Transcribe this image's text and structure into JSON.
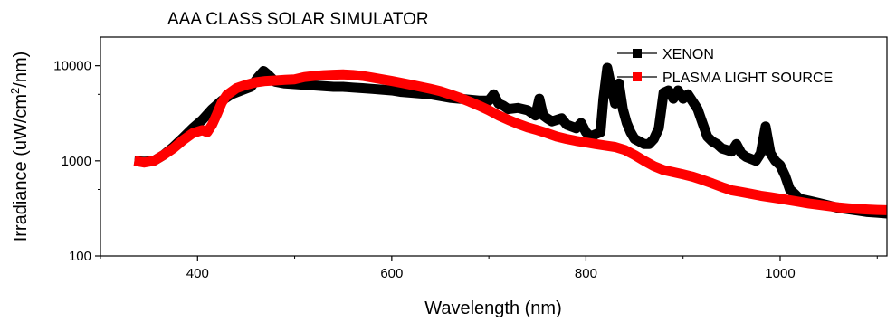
{
  "chart_data": {
    "type": "line",
    "title": "AAA CLASS SOLAR SIMULATOR",
    "xlabel": "Wavelength (nm)",
    "ylabel_parts": [
      "Irradiance (uW/cm",
      "2",
      "/nm)"
    ],
    "xlim": [
      300,
      1110
    ],
    "ylim": [
      100,
      20000
    ],
    "yscale": "log",
    "x_ticks": [
      400,
      600,
      800,
      1000
    ],
    "x_tick_labels": [
      "400",
      "600",
      "800",
      "1000"
    ],
    "y_ticks": [
      100,
      1000,
      10000
    ],
    "y_tick_labels": [
      "100",
      "1000",
      "10000"
    ],
    "grid": false,
    "legend_position": "top-right",
    "series": [
      {
        "name": "XENON",
        "color": "#000000",
        "points": [
          [
            335,
            1000
          ],
          [
            345,
            980
          ],
          [
            355,
            1000
          ],
          [
            365,
            1150
          ],
          [
            375,
            1400
          ],
          [
            385,
            1750
          ],
          [
            395,
            2200
          ],
          [
            405,
            2700
          ],
          [
            415,
            3500
          ],
          [
            425,
            4300
          ],
          [
            435,
            5000
          ],
          [
            445,
            5500
          ],
          [
            455,
            6000
          ],
          [
            462,
            7500
          ],
          [
            468,
            8800
          ],
          [
            474,
            7800
          ],
          [
            480,
            6800
          ],
          [
            490,
            6500
          ],
          [
            500,
            6400
          ],
          [
            510,
            6300
          ],
          [
            520,
            6200
          ],
          [
            530,
            6100
          ],
          [
            540,
            6000
          ],
          [
            550,
            6000
          ],
          [
            560,
            5900
          ],
          [
            570,
            5800
          ],
          [
            580,
            5700
          ],
          [
            590,
            5600
          ],
          [
            600,
            5500
          ],
          [
            610,
            5300
          ],
          [
            620,
            5200
          ],
          [
            630,
            5100
          ],
          [
            640,
            5000
          ],
          [
            650,
            4800
          ],
          [
            660,
            4600
          ],
          [
            670,
            4500
          ],
          [
            680,
            4400
          ],
          [
            690,
            4300
          ],
          [
            700,
            4300
          ],
          [
            705,
            5000
          ],
          [
            710,
            4000
          ],
          [
            715,
            3800
          ],
          [
            720,
            3500
          ],
          [
            730,
            3600
          ],
          [
            740,
            3400
          ],
          [
            748,
            3000
          ],
          [
            752,
            4500
          ],
          [
            756,
            3000
          ],
          [
            760,
            2800
          ],
          [
            765,
            2600
          ],
          [
            770,
            2700
          ],
          [
            775,
            2800
          ],
          [
            780,
            2400
          ],
          [
            785,
            2300
          ],
          [
            790,
            2200
          ],
          [
            795,
            2500
          ],
          [
            800,
            2000
          ],
          [
            805,
            1800
          ],
          [
            810,
            1900
          ],
          [
            815,
            2000
          ],
          [
            818,
            4500
          ],
          [
            822,
            9500
          ],
          [
            826,
            6000
          ],
          [
            830,
            4000
          ],
          [
            834,
            6500
          ],
          [
            838,
            3500
          ],
          [
            842,
            2500
          ],
          [
            846,
            2000
          ],
          [
            850,
            1700
          ],
          [
            855,
            1600
          ],
          [
            860,
            1500
          ],
          [
            865,
            1500
          ],
          [
            870,
            1700
          ],
          [
            875,
            2200
          ],
          [
            880,
            5200
          ],
          [
            885,
            5500
          ],
          [
            890,
            4500
          ],
          [
            895,
            5500
          ],
          [
            900,
            4500
          ],
          [
            905,
            5000
          ],
          [
            910,
            4200
          ],
          [
            915,
            3500
          ],
          [
            920,
            2500
          ],
          [
            925,
            1800
          ],
          [
            930,
            1600
          ],
          [
            935,
            1500
          ],
          [
            940,
            1350
          ],
          [
            945,
            1300
          ],
          [
            950,
            1250
          ],
          [
            955,
            1500
          ],
          [
            960,
            1200
          ],
          [
            965,
            1100
          ],
          [
            970,
            1050
          ],
          [
            975,
            1000
          ],
          [
            980,
            1200
          ],
          [
            985,
            2300
          ],
          [
            990,
            1200
          ],
          [
            995,
            1000
          ],
          [
            1000,
            900
          ],
          [
            1005,
            700
          ],
          [
            1010,
            500
          ],
          [
            1015,
            450
          ],
          [
            1020,
            400
          ],
          [
            1030,
            380
          ],
          [
            1040,
            360
          ],
          [
            1050,
            340
          ],
          [
            1060,
            320
          ],
          [
            1070,
            310
          ],
          [
            1080,
            300
          ],
          [
            1090,
            290
          ],
          [
            1100,
            285
          ],
          [
            1110,
            280
          ]
        ]
      },
      {
        "name": "PLASMA LIGHT SOURCE",
        "color": "#ff0000",
        "points": [
          [
            335,
            1000
          ],
          [
            345,
            960
          ],
          [
            355,
            1000
          ],
          [
            365,
            1150
          ],
          [
            375,
            1350
          ],
          [
            385,
            1650
          ],
          [
            395,
            1950
          ],
          [
            405,
            2100
          ],
          [
            410,
            2000
          ],
          [
            415,
            2400
          ],
          [
            420,
            3100
          ],
          [
            425,
            4100
          ],
          [
            430,
            4900
          ],
          [
            440,
            5800
          ],
          [
            450,
            6300
          ],
          [
            460,
            6700
          ],
          [
            470,
            6900
          ],
          [
            480,
            7000
          ],
          [
            490,
            7100
          ],
          [
            500,
            7200
          ],
          [
            510,
            7600
          ],
          [
            520,
            7800
          ],
          [
            530,
            7950
          ],
          [
            540,
            8050
          ],
          [
            550,
            8100
          ],
          [
            560,
            8000
          ],
          [
            570,
            7800
          ],
          [
            580,
            7500
          ],
          [
            590,
            7200
          ],
          [
            600,
            6900
          ],
          [
            610,
            6600
          ],
          [
            620,
            6300
          ],
          [
            630,
            6000
          ],
          [
            640,
            5700
          ],
          [
            650,
            5400
          ],
          [
            660,
            5000
          ],
          [
            670,
            4600
          ],
          [
            680,
            4200
          ],
          [
            690,
            3800
          ],
          [
            700,
            3400
          ],
          [
            710,
            3000
          ],
          [
            720,
            2700
          ],
          [
            730,
            2450
          ],
          [
            740,
            2250
          ],
          [
            750,
            2100
          ],
          [
            760,
            1950
          ],
          [
            770,
            1800
          ],
          [
            780,
            1700
          ],
          [
            790,
            1620
          ],
          [
            800,
            1560
          ],
          [
            810,
            1500
          ],
          [
            820,
            1450
          ],
          [
            830,
            1400
          ],
          [
            840,
            1300
          ],
          [
            850,
            1150
          ],
          [
            860,
            1000
          ],
          [
            870,
            880
          ],
          [
            880,
            800
          ],
          [
            890,
            760
          ],
          [
            900,
            720
          ],
          [
            910,
            680
          ],
          [
            920,
            630
          ],
          [
            930,
            580
          ],
          [
            940,
            530
          ],
          [
            950,
            490
          ],
          [
            960,
            470
          ],
          [
            970,
            450
          ],
          [
            980,
            430
          ],
          [
            990,
            415
          ],
          [
            1000,
            400
          ],
          [
            1010,
            385
          ],
          [
            1020,
            370
          ],
          [
            1030,
            355
          ],
          [
            1040,
            345
          ],
          [
            1050,
            335
          ],
          [
            1060,
            325
          ],
          [
            1070,
            318
          ],
          [
            1080,
            312
          ],
          [
            1090,
            308
          ],
          [
            1100,
            305
          ],
          [
            1110,
            303
          ]
        ]
      }
    ]
  }
}
